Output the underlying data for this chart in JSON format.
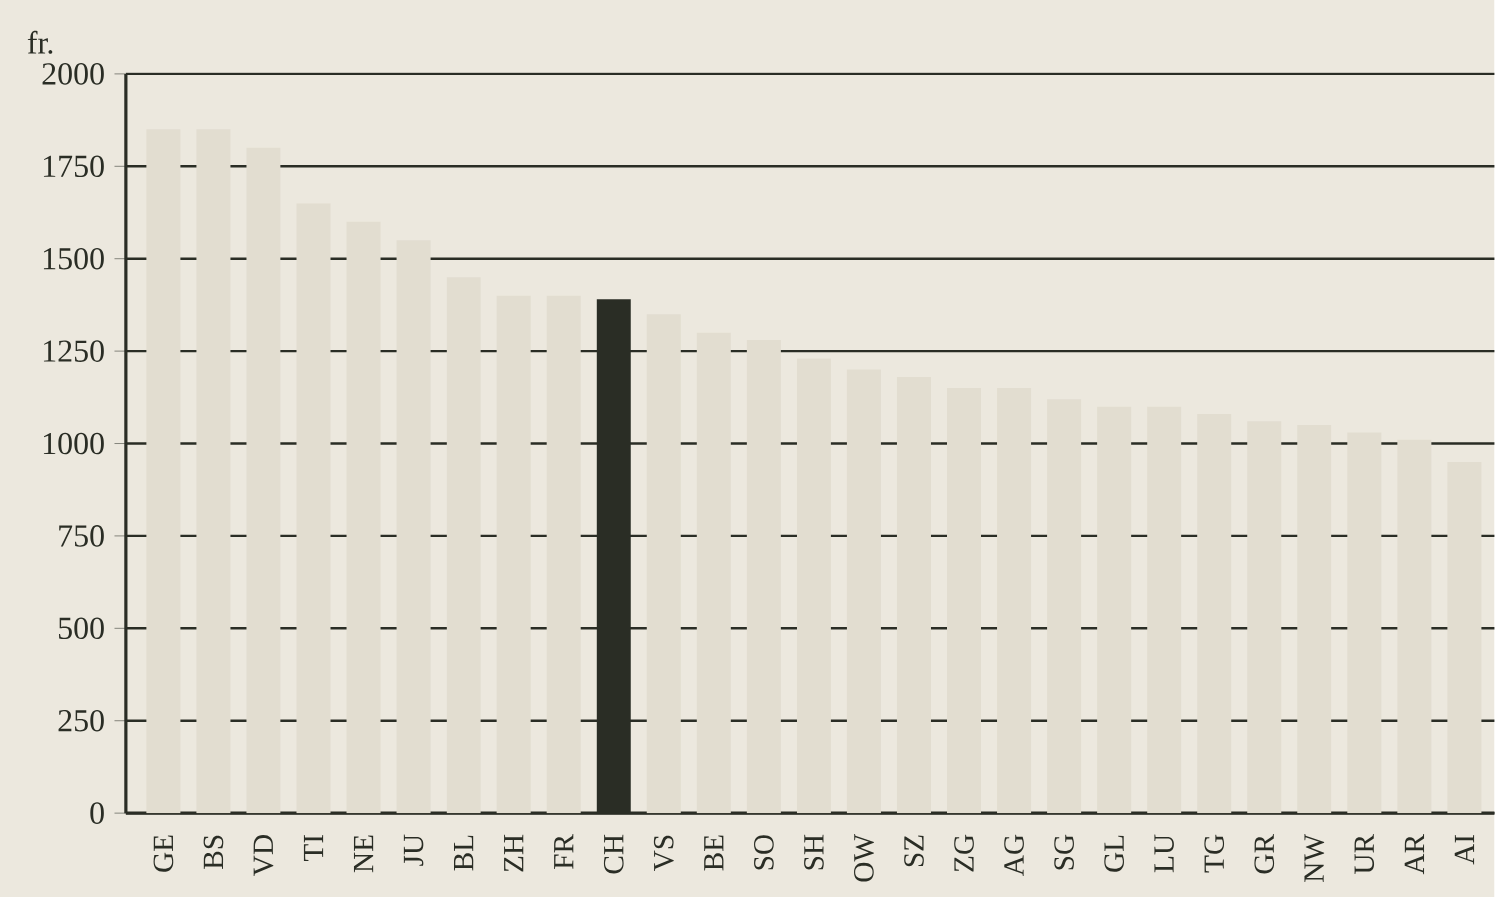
{
  "chart_data": {
    "type": "bar",
    "ylabel": "fr.",
    "categories": [
      "GE",
      "BS",
      "VD",
      "TI",
      "NE",
      "JU",
      "BL",
      "ZH",
      "FR",
      "CH",
      "VS",
      "BE",
      "SO",
      "SH",
      "OW",
      "SZ",
      "ZG",
      "AG",
      "SG",
      "GL",
      "LU",
      "TG",
      "GR",
      "NW",
      "UR",
      "AR",
      "AI"
    ],
    "values": [
      1850,
      1850,
      1800,
      1650,
      1600,
      1550,
      1450,
      1400,
      1400,
      1390,
      1350,
      1300,
      1280,
      1230,
      1200,
      1180,
      1150,
      1150,
      1120,
      1100,
      1100,
      1080,
      1060,
      1050,
      1030,
      1010,
      950
    ],
    "colors": [
      "#e2ddd0",
      "#e2ddd0",
      "#e2ddd0",
      "#e2ddd0",
      "#e2ddd0",
      "#e2ddd0",
      "#e2ddd0",
      "#e2ddd0",
      "#e2ddd0",
      "#2a2d25",
      "#e2ddd0",
      "#e2ddd0",
      "#e2ddd0",
      "#e2ddd0",
      "#e2ddd0",
      "#e2ddd0",
      "#e2ddd0",
      "#e2ddd0",
      "#e2ddd0",
      "#e2ddd0",
      "#e2ddd0",
      "#e2ddd0",
      "#e2ddd0",
      "#e2ddd0",
      "#e2ddd0",
      "#e2ddd0",
      "#e2ddd0"
    ],
    "ylim": [
      0,
      2000
    ],
    "yticks": [
      0,
      250,
      500,
      750,
      1000,
      1250,
      1500,
      1750,
      2000
    ],
    "grid": "y"
  }
}
